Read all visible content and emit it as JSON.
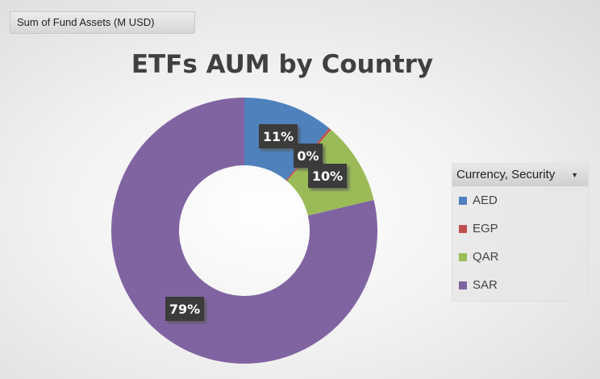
{
  "field_button": "Sum of Fund Assets (M USD)",
  "chart_data": {
    "type": "pie",
    "subtype": "donut",
    "title": "ETFs AUM by Country",
    "categories": [
      "AED",
      "EGP",
      "QAR",
      "SAR"
    ],
    "values": [
      11,
      0.3,
      10,
      78.7
    ],
    "data_labels": [
      "11%",
      "0%",
      "10%",
      "79%"
    ],
    "colors": [
      "#4f81bd",
      "#c0504d",
      "#9bbb59",
      "#8064a2"
    ],
    "legend_title": "Currency, Security",
    "legend_position": "right",
    "start_angle_deg": 0,
    "direction": "clockwise"
  }
}
